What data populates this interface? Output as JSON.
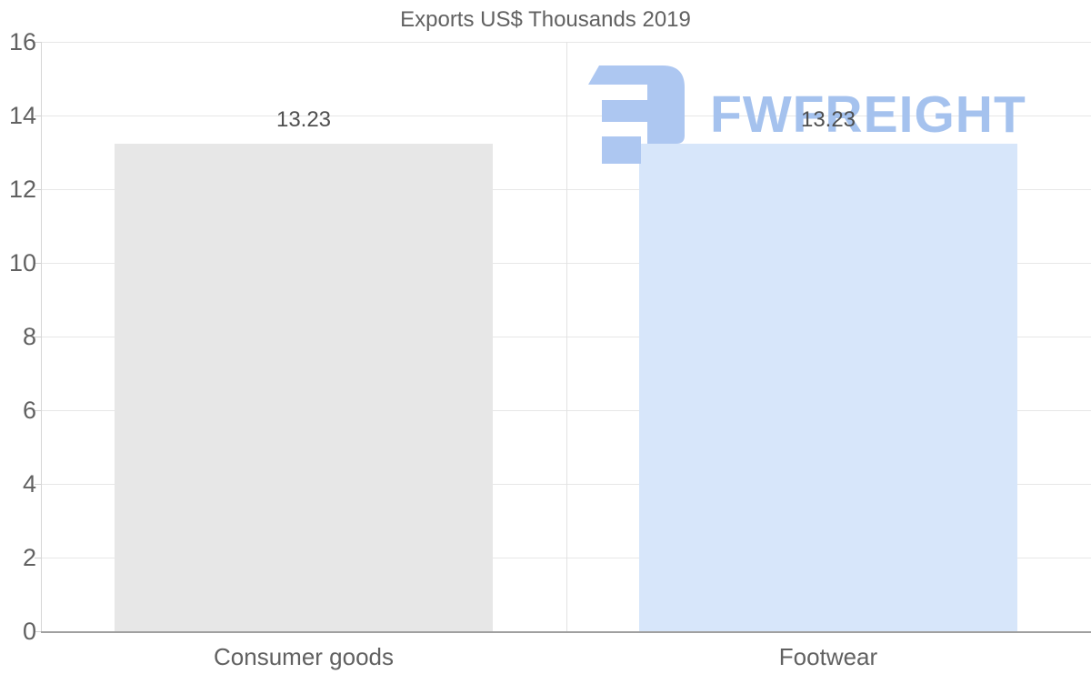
{
  "title": "Exports US$ Thousands 2019",
  "watermark": {
    "text": "FWFREIGHT",
    "logo": "fwfreight-logo",
    "color": "#a5c2ee",
    "logo_color": "#adc7f1"
  },
  "chart_data": {
    "type": "bar",
    "title": "Exports US$ Thousands 2019",
    "categories": [
      "Consumer goods",
      "Footwear"
    ],
    "values": [
      13.23,
      13.23
    ],
    "data_labels": [
      "13.23",
      "13.23"
    ],
    "bar_colors": [
      "#e7e7e7",
      "#d7e6fa"
    ],
    "xlabel": "",
    "ylabel": "",
    "ylim": [
      0,
      16
    ],
    "yticks": [
      0,
      2,
      4,
      6,
      8,
      10,
      12,
      14,
      16
    ],
    "grid": true,
    "legend": "none"
  },
  "colors": {
    "background": "#ffffff",
    "grid": "#e7e7e7",
    "category_divider": "#e2e2e2",
    "x_axis_line": "#a0a0a0",
    "y_axis_line": "#d6d6d6",
    "text": "#616161",
    "data_label_text": "#4f4f4f"
  }
}
